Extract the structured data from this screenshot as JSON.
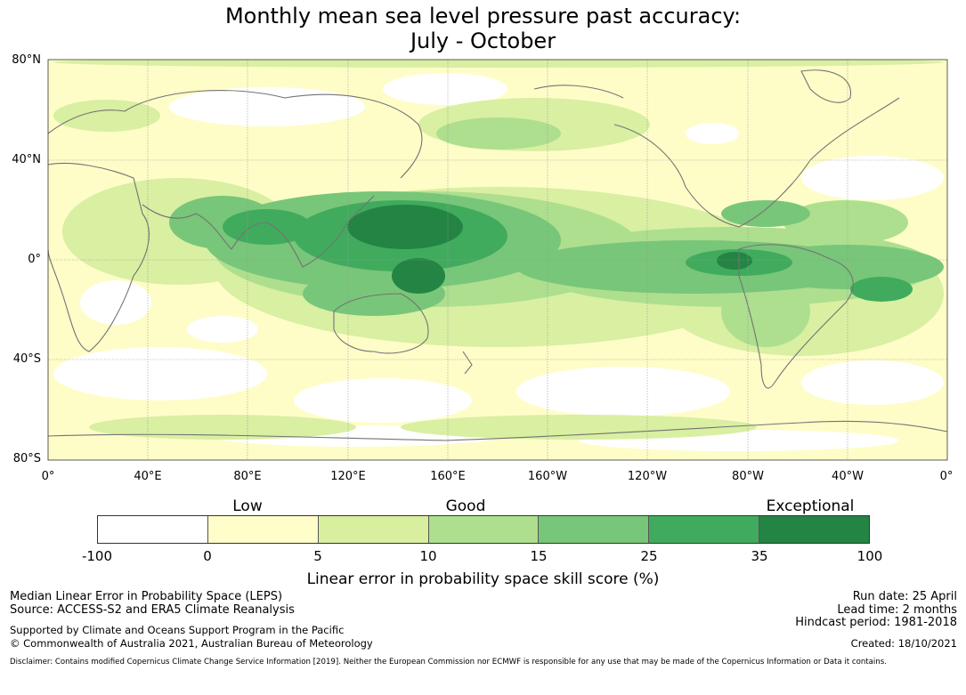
{
  "title": {
    "line1": "Monthly mean sea level pressure past accuracy:",
    "line2": "July - October"
  },
  "map": {
    "lat_labels": [
      "80°N",
      "40°N",
      "0°",
      "40°S",
      "80°S"
    ],
    "lon_labels": [
      "0°",
      "40°E",
      "80°E",
      "120°E",
      "160°E",
      "160°W",
      "120°W",
      "80°W",
      "40°W",
      "0°"
    ],
    "colors": {
      "white": "#ffffff",
      "c0_5": "#fefdc8",
      "c5_10": "#d9efa2",
      "c10_15": "#addf8e",
      "c15_25": "#78c679",
      "c25_35": "#41ab5d",
      "c35_100": "#238443",
      "coast": "#737373",
      "grid": "#9a9a9a"
    }
  },
  "colorbar": {
    "categories": [
      "Low",
      "Good",
      "Exceptional"
    ],
    "ticks": [
      "-100",
      "0",
      "5",
      "10",
      "15",
      "25",
      "35",
      "100"
    ],
    "colors": [
      "#ffffff",
      "#fffecb",
      "#d8efa0",
      "#addf8e",
      "#78c679",
      "#41ab5d",
      "#238443"
    ],
    "label": "Linear error in probability space skill score (%)"
  },
  "footer": {
    "left_line1": "Median Linear Error in Probability Space (LEPS)",
    "left_line2": "Source: ACCESS-S2 and ERA5 Climate Reanalysis",
    "support_line1": "Supported by Climate and Oceans Support Program in the Pacific",
    "support_line2": "© Commonwealth of Australia 2021, Australian Bureau of Meteorology",
    "run_date": "Run date: 25 April",
    "lead_time": "Lead time: 2 months",
    "hindcast": "Hindcast period: 1981-2018",
    "created": "Created: 18/10/2021",
    "disclaimer": "Disclaimer: Contains modified Copernicus Climate Change Service Information [2019]. Neither the European Commission nor ECMWF is responsible for any use that may be made of the Copernicus Information or Data it contains."
  }
}
